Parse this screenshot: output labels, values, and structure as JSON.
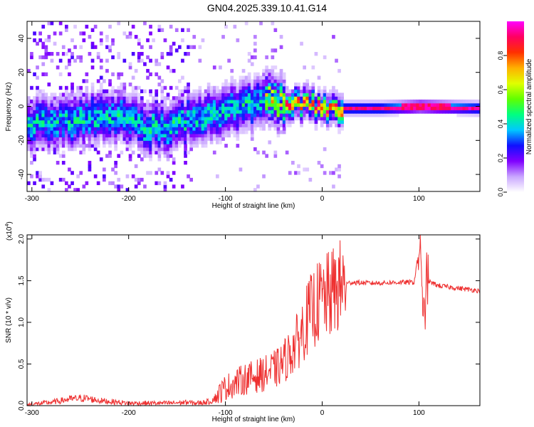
{
  "title": "GN04.2025.339.10.41.G14",
  "chart_data": [
    {
      "type": "heatmap",
      "name": "spectrogram",
      "xlabel": "Height of straight line (km)",
      "ylabel": "Frequency (Hz)",
      "xlim": [
        -305,
        163
      ],
      "ylim": [
        -50,
        50
      ],
      "xticks": [
        -300,
        -200,
        -100,
        0,
        100
      ],
      "yticks": [
        -40,
        -20,
        0,
        20,
        40
      ],
      "grid": false,
      "ridge": {
        "x": [
          -305,
          -280,
          -250,
          -220,
          -200,
          -185,
          -160,
          -140,
          -120,
          -100,
          -80,
          -60,
          -40,
          -30,
          -20,
          -10,
          0,
          20,
          60,
          100,
          163
        ],
        "f": [
          -12,
          -10,
          -8,
          -6,
          -8,
          -14,
          -13,
          -9,
          -6,
          -4,
          0,
          3,
          1,
          1,
          0,
          -1,
          -2,
          -2,
          -2,
          -1,
          -2
        ]
      },
      "noise_region": [
        -305,
        -140
      ],
      "colorbar": {
        "label": "Normalized spectral amplitude",
        "ticks": [
          0.0,
          0.2,
          0.4,
          0.6,
          0.8
        ],
        "range": [
          0,
          1
        ],
        "colors": [
          "#ffffff",
          "#c9a6ff",
          "#8000ff",
          "#1010ff",
          "#00c8ff",
          "#00ff80",
          "#60ff00",
          "#e0ff00",
          "#ffb000",
          "#ff3000",
          "#ff0060",
          "#ff00ff"
        ]
      }
    },
    {
      "type": "line",
      "name": "snr",
      "xlabel": "Height of straight line (km)",
      "ylabel": "SNR (10 * v/v)",
      "multiplier": "(x10",
      "multiplier_exp": "4",
      "multiplier_close": ")",
      "xlim": [
        -305,
        163
      ],
      "ylim": [
        0,
        2.05
      ],
      "xticks": [
        -300,
        -200,
        -100,
        0,
        100
      ],
      "yticks": [
        0.0,
        0.5,
        1.0,
        1.5,
        2.0
      ],
      "color": "#ee3030",
      "series": [
        {
          "name": "SNR",
          "x": [
            -305,
            -280,
            -260,
            -245,
            -230,
            -200,
            -160,
            -140,
            -130,
            -115,
            -100,
            -80,
            -60,
            -45,
            -35,
            -25,
            -20,
            -15,
            -10,
            -5,
            0,
            5,
            10,
            15,
            20,
            25,
            30,
            50,
            80,
            95,
            102,
            104,
            108,
            120,
            140,
            163
          ],
          "y": [
            0.01,
            0.04,
            0.08,
            0.09,
            0.06,
            0.03,
            0.03,
            0.04,
            0.03,
            0.05,
            0.22,
            0.32,
            0.38,
            0.46,
            0.6,
            0.78,
            0.92,
            1.05,
            1.15,
            1.22,
            1.28,
            1.3,
            1.35,
            1.4,
            1.44,
            1.46,
            1.48,
            1.47,
            1.48,
            1.48,
            2.03,
            0.85,
            1.5,
            1.44,
            1.41,
            1.38
          ]
        }
      ]
    }
  ]
}
